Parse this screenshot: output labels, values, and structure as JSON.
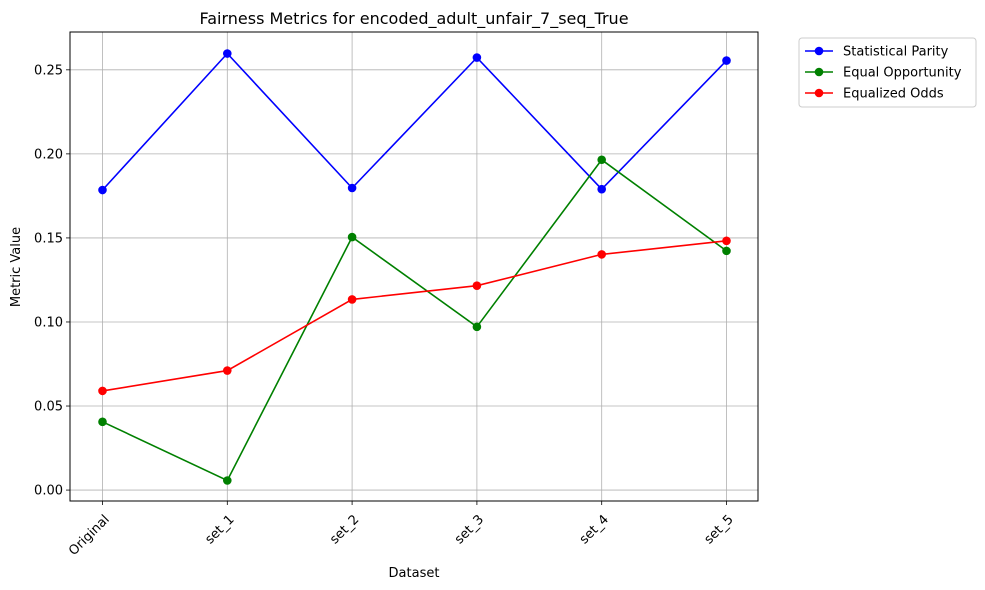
{
  "chart_data": {
    "type": "line",
    "title": "Fairness Metrics for encoded_adult_unfair_7_seq_True",
    "xlabel": "Dataset",
    "ylabel": "Metric Value",
    "categories": [
      "Original",
      "set_1",
      "set_2",
      "set_3",
      "set_4",
      "set_5"
    ],
    "yticks": [
      "0.00",
      "0.05",
      "0.10",
      "0.15",
      "0.20",
      "0.25"
    ],
    "ylim": [
      -0.0065,
      0.2725
    ],
    "grid": true,
    "legend_position": "outside upper right",
    "series": [
      {
        "name": "Statistical Parity",
        "color": "#0000ff",
        "values": [
          0.1785,
          0.2597,
          0.1797,
          0.2573,
          0.179,
          0.2555
        ]
      },
      {
        "name": "Equal Opportunity",
        "color": "#008000",
        "values": [
          0.0406,
          0.0057,
          0.1505,
          0.0971,
          0.1965,
          0.1423
        ]
      },
      {
        "name": "Equalized Odds",
        "color": "#ff0000",
        "values": [
          0.059,
          0.0711,
          0.1134,
          0.1216,
          0.1402,
          0.1483
        ]
      }
    ]
  }
}
